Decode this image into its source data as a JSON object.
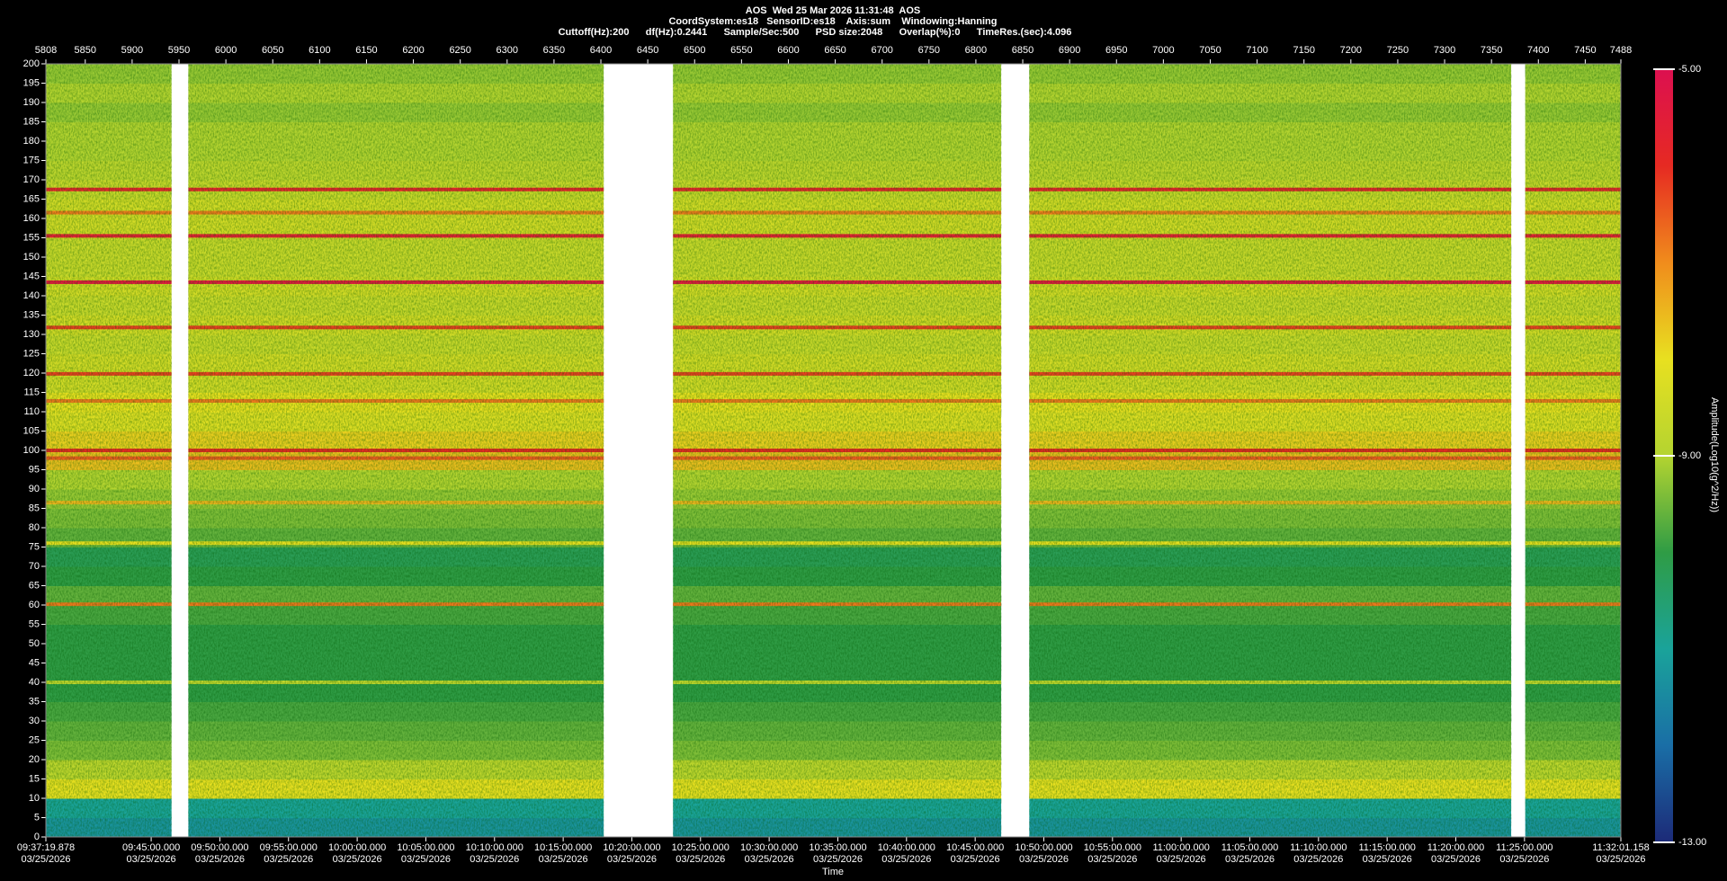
{
  "chart_data": {
    "type": "spectrogram",
    "title": [
      "AOS  Wed 25 Mar 2026 11:31:48  AOS",
      "CoordSystem:es18   SensorID:es18    Axis:sum    Windowing:Hanning",
      "Cuttoff(Hz):200      df(Hz):0.2441      Sample/Sec:500      PSD size:2048      Overlap(%):0      TimeRes.(sec):4.096"
    ],
    "x_label": "Time",
    "colorbar_label": "Amplitude(Log10(g^2/Hz))",
    "xlim": [
      5808,
      7488
    ],
    "xticks": [
      5808,
      5850,
      5900,
      5950,
      6000,
      6050,
      6100,
      6150,
      6200,
      6250,
      6300,
      6350,
      6400,
      6450,
      6500,
      6550,
      6600,
      6650,
      6700,
      6750,
      6800,
      6850,
      6900,
      6950,
      7000,
      7050,
      7100,
      7150,
      7200,
      7250,
      7300,
      7350,
      7400,
      7450,
      7488
    ],
    "time_ticks": [
      {
        "value": 5808,
        "label": "09:37:19.878"
      },
      {
        "value": 5920.33,
        "label": "09:45:00.000"
      },
      {
        "value": 5993.58,
        "label": "09:50:00.000"
      },
      {
        "value": 6066.82,
        "label": "09:55:00.000"
      },
      {
        "value": 6140.07,
        "label": "10:00:00.000"
      },
      {
        "value": 6213.31,
        "label": "10:05:00.000"
      },
      {
        "value": 6286.55,
        "label": "10:10:00.000"
      },
      {
        "value": 6359.8,
        "label": "10:15:00.000"
      },
      {
        "value": 6433.04,
        "label": "10:20:00.000"
      },
      {
        "value": 6506.28,
        "label": "10:25:00.000"
      },
      {
        "value": 6579.52,
        "label": "10:30:00.000"
      },
      {
        "value": 6652.77,
        "label": "10:35:00.000"
      },
      {
        "value": 6726.01,
        "label": "10:40:00.000"
      },
      {
        "value": 6799.26,
        "label": "10:45:00.000"
      },
      {
        "value": 6872.5,
        "label": "10:50:00.000"
      },
      {
        "value": 6945.74,
        "label": "10:55:00.000"
      },
      {
        "value": 7018.99,
        "label": "11:00:00.000"
      },
      {
        "value": 7092.23,
        "label": "11:05:00.000"
      },
      {
        "value": 7165.47,
        "label": "11:10:00.000"
      },
      {
        "value": 7238.72,
        "label": "11:15:00.000"
      },
      {
        "value": 7311.96,
        "label": "11:20:00.000"
      },
      {
        "value": 7385.2,
        "label": "11:25:00.000"
      },
      {
        "value": 7488,
        "label": "11:32:01.158"
      }
    ],
    "date": "03/25/2026",
    "ylim": [
      0,
      200
    ],
    "yticks": [
      0,
      5,
      10,
      15,
      20,
      25,
      30,
      35,
      40,
      45,
      50,
      55,
      60,
      65,
      70,
      75,
      80,
      85,
      90,
      95,
      100,
      105,
      110,
      115,
      120,
      125,
      130,
      135,
      140,
      145,
      150,
      155,
      160,
      165,
      170,
      175,
      180,
      185,
      190,
      195,
      200
    ],
    "segments": [
      [
        5808,
        5942
      ],
      [
        5960,
        6403
      ],
      [
        6477,
        6827
      ],
      [
        6857,
        7371
      ],
      [
        7386,
        7488
      ]
    ],
    "bands": [
      0,
      5,
      10,
      15,
      20,
      25,
      30,
      35,
      40,
      45,
      50,
      55,
      60,
      65,
      70,
      75,
      80,
      85,
      90,
      95,
      100,
      105,
      110,
      115,
      120,
      125,
      130,
      135,
      140,
      145,
      150,
      155,
      160,
      165,
      170,
      175,
      180,
      185,
      190,
      195,
      200
    ],
    "levels": [
      -11.3,
      -11.0,
      -8.0,
      -8.8,
      -9.4,
      -9.6,
      -9.8,
      -10.0,
      -10.0,
      -10.0,
      -10.0,
      -9.8,
      -9.6,
      -10.0,
      -10.2,
      -9.6,
      -9.4,
      -9.2,
      -9.0,
      -7.6,
      -7.8,
      -8.2,
      -8.0,
      -8.4,
      -8.4,
      -8.6,
      -8.4,
      -8.6,
      -8.4,
      -8.6,
      -8.6,
      -8.4,
      -8.4,
      -8.6,
      -8.8,
      -9.0,
      -9.0,
      -9.2,
      -9.0,
      -9.2
    ],
    "tones": [
      {
        "frequency": 167.5,
        "amplitude": -5.8
      },
      {
        "frequency": 161.5,
        "amplitude": -6.8
      },
      {
        "frequency": 155.5,
        "amplitude": -5.6
      },
      {
        "frequency": 143.5,
        "amplitude": -5.4
      },
      {
        "frequency": 131.8,
        "amplitude": -6.2
      },
      {
        "frequency": 119.8,
        "amplitude": -6.2
      },
      {
        "frequency": 112.8,
        "amplitude": -6.8
      },
      {
        "frequency": 100,
        "amplitude": -6.0
      },
      {
        "frequency": 98,
        "amplitude": -6.5
      },
      {
        "frequency": 86.5,
        "amplitude": -7.5
      },
      {
        "frequency": 76,
        "amplitude": -8.0
      },
      {
        "frequency": 60.2,
        "amplitude": -6.8
      },
      {
        "frequency": 40,
        "amplitude": -8.8
      }
    ],
    "clim": [
      -13,
      -5
    ],
    "cticks": [
      {
        "value": -5,
        "label": "-5.00"
      },
      {
        "value": -9,
        "label": "-9.00"
      },
      {
        "value": -13,
        "label": "-13.00"
      }
    ],
    "colormap": [
      "#1c2a78",
      "#1a6ea6",
      "#1aa39a",
      "#2f9c45",
      "#b4d430",
      "#e8e020",
      "#f08c1c",
      "#e62a22",
      "#dc1050"
    ]
  }
}
